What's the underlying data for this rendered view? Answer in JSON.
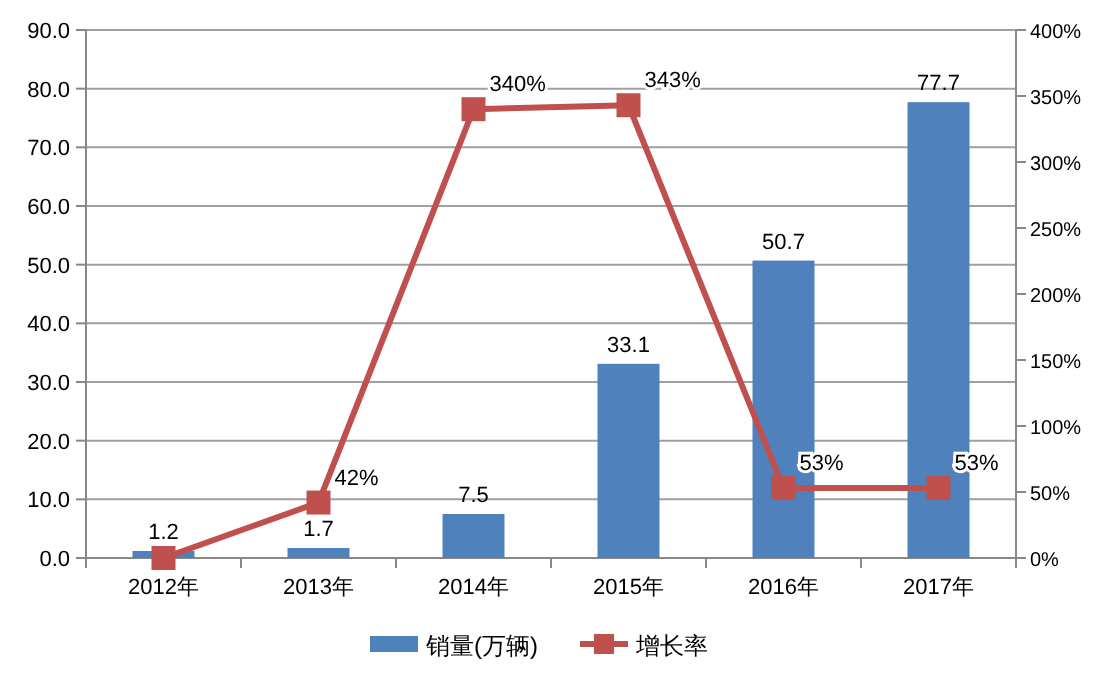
{
  "chart_data": {
    "type": "bar",
    "categories": [
      "2012年",
      "2013年",
      "2014年",
      "2015年",
      "2016年",
      "2017年"
    ],
    "series": [
      {
        "name": "销量(万辆)",
        "color": "#4f81bd",
        "values": [
          1.2,
          1.7,
          7.5,
          33.1,
          50.7,
          77.7
        ],
        "data_labels": true
      },
      {
        "name": "增长率",
        "type": "line",
        "axis": "y2",
        "color": "#c0504d",
        "marker": "square",
        "values": [
          0,
          42,
          340,
          343,
          53,
          53
        ],
        "value_labels": [
          null,
          "42%",
          "340%",
          "343%",
          "53%",
          "53%"
        ]
      }
    ],
    "ylim": [
      0,
      90
    ],
    "yticks": [
      {
        "value": 0,
        "label": "0.0"
      },
      {
        "value": 10,
        "label": "10.0"
      },
      {
        "value": 20,
        "label": "20.0"
      },
      {
        "value": 30,
        "label": "30.0"
      },
      {
        "value": 40,
        "label": "40.0"
      },
      {
        "value": 50,
        "label": "50.0"
      },
      {
        "value": 60,
        "label": "60.0"
      },
      {
        "value": 70,
        "label": "70.0"
      },
      {
        "value": 80,
        "label": "80.0"
      },
      {
        "value": 90,
        "label": "90.0"
      }
    ],
    "y2lim": [
      0,
      400
    ],
    "y2ticks": [
      {
        "value": 0,
        "label": "0%"
      },
      {
        "value": 50,
        "label": "50%"
      },
      {
        "value": 100,
        "label": "100%"
      },
      {
        "value": 150,
        "label": "150%"
      },
      {
        "value": 200,
        "label": "200%"
      },
      {
        "value": 250,
        "label": "250%"
      },
      {
        "value": 300,
        "label": "300%"
      },
      {
        "value": 350,
        "label": "350%"
      },
      {
        "value": 400,
        "label": "400%"
      }
    ],
    "grid": "y",
    "legend": "bottom"
  }
}
